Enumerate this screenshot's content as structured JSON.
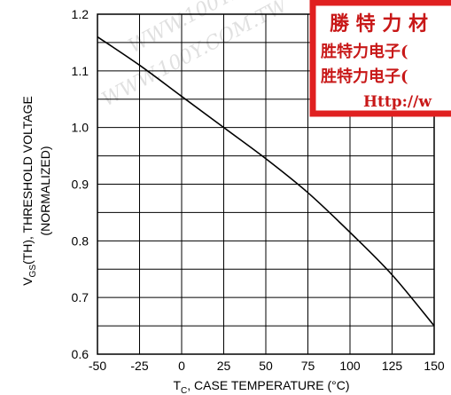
{
  "chart_data": {
    "type": "line",
    "xlabel": "T",
    "xlabel_sub": "C",
    "xlabel_rest": ", CASE TEMPERATURE (°C)",
    "ylabel_line1_main": "V",
    "ylabel_line1_sub": "GS",
    "ylabel_line1_rest": "(TH), THRESHOLD VOLTAGE",
    "ylabel_line2": "(NORMALIZED)",
    "xlim": [
      -50,
      150
    ],
    "ylim": [
      0.6,
      1.2
    ],
    "x_ticks": [
      "-50",
      "-25",
      "0",
      "25",
      "50",
      "75",
      "100",
      "125",
      "150"
    ],
    "y_ticks": [
      "0.6",
      "0.7",
      "0.8",
      "0.9",
      "1.0",
      "1.1",
      "1.2"
    ],
    "grid": true,
    "series": [
      {
        "x": [
          -50,
          -25,
          0,
          25,
          50,
          75,
          100,
          125,
          150
        ],
        "y": [
          1.16,
          1.11,
          1.055,
          1.0,
          0.945,
          0.885,
          0.815,
          0.74,
          0.65
        ]
      }
    ]
  },
  "overlay": {
    "stamp_line1": "勝 特 力 材",
    "stamp_line2": "胜特力电子(",
    "stamp_line3": "胜特力电子(",
    "stamp_line4": "Http://w",
    "stamp_color": "#e02020",
    "watermark": "WWW.100Y.COM.TW"
  }
}
